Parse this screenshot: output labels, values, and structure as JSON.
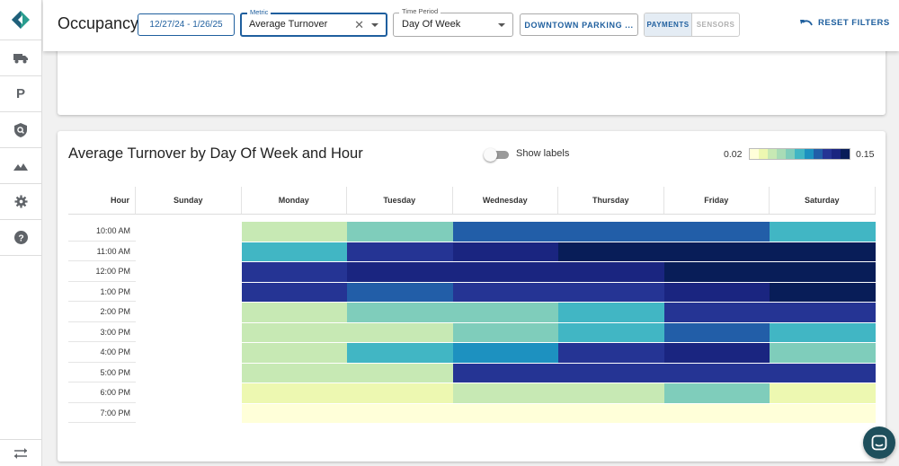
{
  "header": {
    "title": "Occupancy",
    "date_range": "12/27/24 - 1/26/25",
    "metric_label": "Metric",
    "metric_value": "Average Turnover",
    "period_label": "Time Period",
    "period_value": "Day Of Week",
    "location_button": "DOWNTOWN PARKING ...",
    "toggle_payments": "PAYMENTS",
    "toggle_sensors": "SENSORS",
    "reset_label": "RESET FILTERS"
  },
  "sidebar": {
    "items": [
      "truck-icon",
      "parking-icon",
      "shield-search-icon",
      "mountains-icon",
      "gear-icon",
      "help-icon"
    ],
    "parking_glyph": "P"
  },
  "chart": {
    "title": "Average Turnover by Day Of Week and Hour",
    "show_labels": "Show labels",
    "legend_min": "0.02",
    "legend_max": "0.15",
    "legend_colors": [
      "#ffffd9",
      "#edf8b1",
      "#c7e9b4",
      "#a8dcb6",
      "#7fcdbb",
      "#41b6c4",
      "#1d91c0",
      "#225ea8",
      "#253494",
      "#1a2580",
      "#081d58"
    ]
  },
  "chart_data": {
    "type": "heatmap",
    "title": "Average Turnover by Day Of Week and Hour",
    "hour_header": "Hour",
    "x_categories": [
      "Sunday",
      "Monday",
      "Tuesday",
      "Wednesday",
      "Thursday",
      "Friday",
      "Saturday"
    ],
    "y_categories": [
      "10:00 AM",
      "11:00 AM",
      "12:00 PM",
      "1:00 PM",
      "2:00 PM",
      "3:00 PM",
      "4:00 PM",
      "5:00 PM",
      "6:00 PM",
      "7:00 PM"
    ],
    "scale_min": 0.02,
    "scale_max": 0.15,
    "values": [
      [
        null,
        0.04,
        0.07,
        0.11,
        0.11,
        0.11,
        0.08
      ],
      [
        null,
        0.08,
        0.13,
        0.14,
        0.15,
        0.15,
        0.15
      ],
      [
        null,
        0.13,
        0.14,
        0.14,
        0.14,
        0.15,
        0.15
      ],
      [
        null,
        0.13,
        0.11,
        0.13,
        0.13,
        0.14,
        0.15
      ],
      [
        null,
        0.05,
        0.07,
        0.07,
        0.09,
        0.12,
        0.12
      ],
      [
        null,
        0.04,
        0.04,
        0.07,
        0.08,
        0.11,
        0.09
      ],
      [
        null,
        0.05,
        0.09,
        0.1,
        0.12,
        0.14,
        0.07
      ],
      [
        null,
        0.05,
        0.05,
        0.12,
        0.12,
        0.13,
        0.12
      ],
      [
        null,
        0.03,
        0.03,
        0.05,
        0.05,
        0.07,
        0.03
      ],
      [
        null,
        0.02,
        0.02,
        0.02,
        0.02,
        0.02,
        0.02
      ]
    ]
  }
}
